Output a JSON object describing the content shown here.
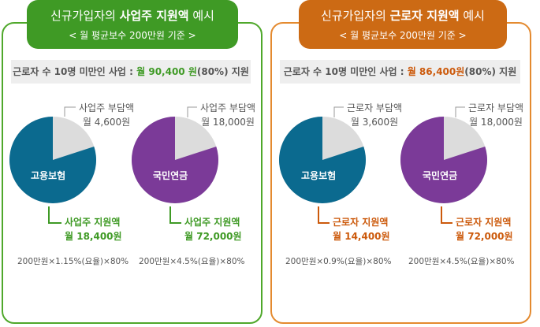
{
  "employer_panel": {
    "title_pre": "신규가입자의 ",
    "title_bold": "사업주 지원액",
    "title_post": " 예시",
    "subtitle": "< 월 평균보수 200만원 기준 >",
    "info_pre": "근로자 수 10명 미만인 사업 : ",
    "info_amount": "월 90,400 원",
    "info_post": "(80%) 지원",
    "items": [
      {
        "pie_label": "고용보험",
        "burden_label": "사업주 부담액",
        "burden_amount": "월 4,600원",
        "support_label": "사업주 지원액",
        "support_amount": "월 18,400원",
        "formula": "200만원×1.15%(요율)×80%",
        "support_fraction": 0.8,
        "color": "#0b6a8f"
      },
      {
        "pie_label": "국민연금",
        "burden_label": "사업주 부담액",
        "burden_amount": "월 18,000원",
        "support_label": "사업주 지원액",
        "support_amount": "월 72,000원",
        "formula": "200만원×4.5%(요율)×80%",
        "support_fraction": 0.8,
        "color": "#7b3a98"
      }
    ]
  },
  "worker_panel": {
    "title_pre": "신규가입자의 ",
    "title_bold": "근로자 지원액",
    "title_post": " 예시",
    "subtitle": "< 월 평균보수 200만원 기준 >",
    "info_pre": "근로자 수 10명 미만인 사업 : ",
    "info_amount": "월 86,400원",
    "info_post": "(80%) 지원",
    "items": [
      {
        "pie_label": "고용보험",
        "burden_label": "근로자 부담액",
        "burden_amount": "월 3,600원",
        "support_label": "근로자 지원액",
        "support_amount": "월 14,400원",
        "formula": "200만원×0.9%(요율)×80%",
        "support_fraction": 0.8,
        "color": "#0b6a8f"
      },
      {
        "pie_label": "국민연금",
        "burden_label": "근로자 부담액",
        "burden_amount": "월 18,000원",
        "support_label": "근로자 지원액",
        "support_amount": "월 72,000원",
        "formula": "200만원×4.5%(요율)×80%",
        "support_fraction": 0.8,
        "color": "#7b3a98"
      }
    ]
  },
  "colors": {
    "employer_accent": "#3f9a25",
    "worker_accent": "#cc6a14",
    "burden_slice": "#dcdcdc",
    "info_bar_bg": "#eeeeee"
  }
}
